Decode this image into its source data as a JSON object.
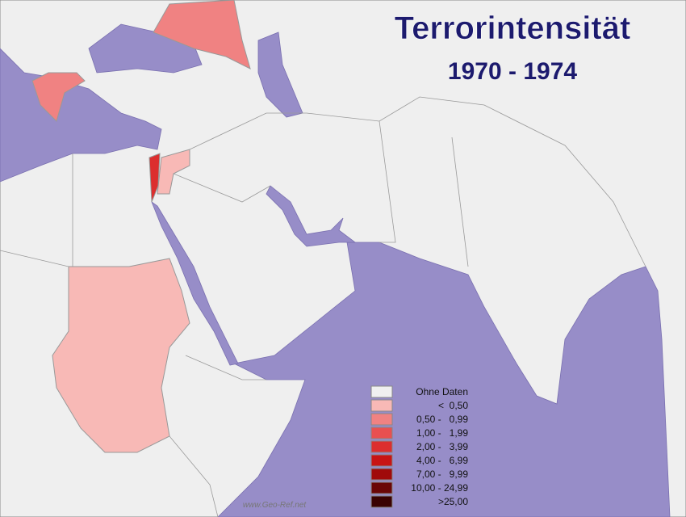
{
  "title": "Terrorintensität",
  "subtitle": "1970 - 1974",
  "legend": {
    "items": [
      {
        "label": "Ohne Daten",
        "color": "#f0f0f0"
      },
      {
        "label": "<  0,50",
        "color": "#f8b9b6"
      },
      {
        "label": "0,50 -   0,99",
        "color": "#f08282"
      },
      {
        "label": "1,00 -   1,99",
        "color": "#e85050"
      },
      {
        "label": "2,00 -   3,99",
        "color": "#dc2e2e"
      },
      {
        "label": "4,00 -   6,99",
        "color": "#c81414"
      },
      {
        "label": "7,00 -   9,99",
        "color": "#a00a0a"
      },
      {
        "label": "10,00 - 24,99",
        "color": "#6a0606"
      },
      {
        "label": ">25,00",
        "color": "#3a0202"
      }
    ]
  },
  "watermark": "www.Geo-Ref.net"
}
